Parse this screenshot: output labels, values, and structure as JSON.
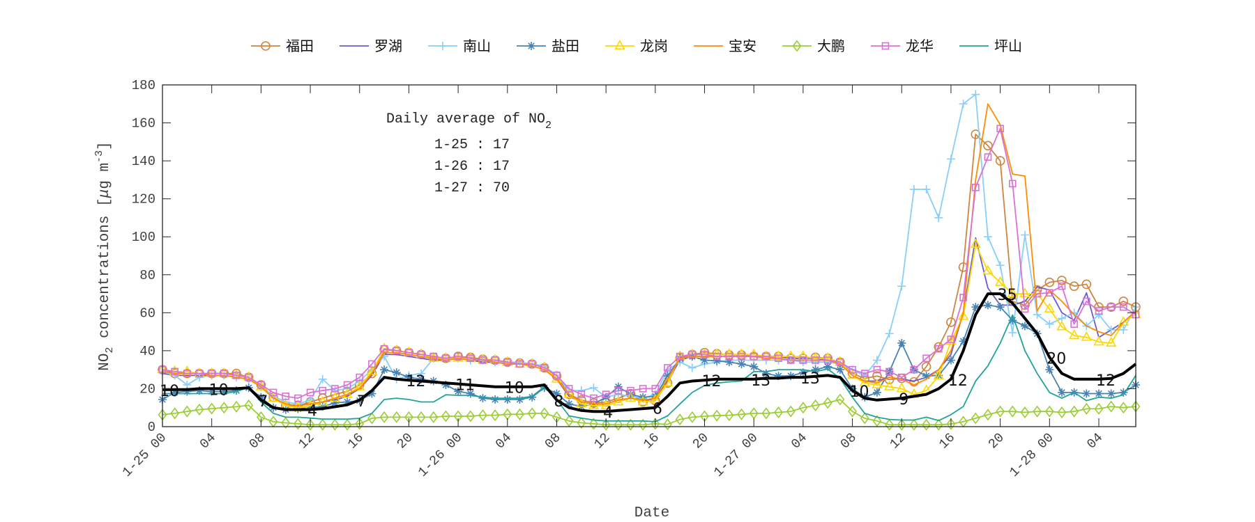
{
  "chart_data": {
    "type": "line",
    "xlabel": "Date",
    "ylabel": {
      "main": "NO",
      "sub": "2",
      "rest": " concentrations [",
      "mu": "μ",
      "unit": "g m",
      "sup": "-3",
      "close": "]"
    },
    "ylim": [
      0,
      180
    ],
    "yticks": [
      0,
      20,
      40,
      60,
      80,
      100,
      120,
      140,
      160,
      180
    ],
    "xlim": [
      "1-25 00",
      "1-28 07"
    ],
    "xticks": [
      {
        "x": "1-25 00",
        "label": "1-25 00"
      },
      {
        "x": "1-25 04",
        "label": "04"
      },
      {
        "x": "1-25 08",
        "label": "08"
      },
      {
        "x": "1-25 12",
        "label": "12"
      },
      {
        "x": "1-25 16",
        "label": "16"
      },
      {
        "x": "1-25 20",
        "label": "20"
      },
      {
        "x": "1-26 00",
        "label": "1-26 00"
      },
      {
        "x": "1-26 04",
        "label": "04"
      },
      {
        "x": "1-26 08",
        "label": "08"
      },
      {
        "x": "1-26 12",
        "label": "12"
      },
      {
        "x": "1-26 16",
        "label": "16"
      },
      {
        "x": "1-26 20",
        "label": "20"
      },
      {
        "x": "1-27 00",
        "label": "1-27 00"
      },
      {
        "x": "1-27 04",
        "label": "04"
      },
      {
        "x": "1-27 08",
        "label": "08"
      },
      {
        "x": "1-27 12",
        "label": "12"
      },
      {
        "x": "1-27 16",
        "label": "16"
      },
      {
        "x": "1-27 20",
        "label": "20"
      },
      {
        "x": "1-28 00",
        "label": "1-28 00"
      },
      {
        "x": "1-28 04",
        "label": "04"
      }
    ],
    "grid": false,
    "legend_placement": "top, outside, horizontal",
    "x": [
      "1-25 00",
      "1-25 01",
      "1-25 02",
      "1-25 03",
      "1-25 04",
      "1-25 05",
      "1-25 06",
      "1-25 07",
      "1-25 08",
      "1-25 09",
      "1-25 10",
      "1-25 11",
      "1-25 12",
      "1-25 13",
      "1-25 14",
      "1-25 15",
      "1-25 16",
      "1-25 17",
      "1-25 18",
      "1-25 19",
      "1-25 20",
      "1-25 21",
      "1-25 22",
      "1-25 23",
      "1-26 00",
      "1-26 01",
      "1-26 02",
      "1-26 03",
      "1-26 04",
      "1-26 05",
      "1-26 06",
      "1-26 07",
      "1-26 08",
      "1-26 09",
      "1-26 10",
      "1-26 11",
      "1-26 12",
      "1-26 13",
      "1-26 14",
      "1-26 15",
      "1-26 16",
      "1-26 17",
      "1-26 18",
      "1-26 19",
      "1-26 20",
      "1-26 21",
      "1-26 22",
      "1-26 23",
      "1-27 00",
      "1-27 01",
      "1-27 02",
      "1-27 03",
      "1-27 04",
      "1-27 05",
      "1-27 06",
      "1-27 07",
      "1-27 08",
      "1-27 09",
      "1-27 10",
      "1-27 11",
      "1-27 12",
      "1-27 13",
      "1-27 14",
      "1-27 15",
      "1-27 16",
      "1-27 17",
      "1-27 18",
      "1-27 19",
      "1-27 20",
      "1-27 21",
      "1-27 22",
      "1-27 23",
      "1-28 00",
      "1-28 01",
      "1-28 02",
      "1-28 03",
      "1-28 04",
      "1-28 05",
      "1-28 06",
      "1-28 07"
    ],
    "series": [
      {
        "name": "福田",
        "color": "#CD853F",
        "marker": "circle",
        "values": [
          30,
          28,
          28,
          28,
          28,
          28,
          28,
          26,
          22,
          15.5,
          11,
          11,
          13,
          15,
          17,
          18.6,
          22,
          28,
          40.5,
          40,
          39,
          38,
          36.5,
          36,
          37,
          36.5,
          35.5,
          35,
          34,
          33.5,
          33,
          31,
          26.7,
          17,
          14,
          12.5,
          13,
          15,
          17.4,
          13,
          13.7,
          23,
          36,
          38,
          39,
          38.4,
          37.8,
          37.8,
          37,
          37,
          37,
          36,
          36,
          36.5,
          36,
          34,
          28,
          25.4,
          26.7,
          24.8,
          25.4,
          23.6,
          31.6,
          42,
          55,
          84,
          154,
          148,
          140,
          66,
          64,
          72,
          76,
          77,
          74,
          75,
          63,
          63,
          66,
          63
        ]
      },
      {
        "name": "罗湖",
        "color": "#6A5ACD",
        "marker": "none",
        "values": [
          28,
          27,
          27,
          27,
          27,
          27,
          26,
          25,
          21,
          15,
          12,
          11,
          12,
          13,
          14,
          16,
          20,
          27,
          38,
          38,
          37,
          36,
          35,
          35,
          36,
          35,
          34,
          34,
          33,
          33,
          32,
          30,
          25,
          16,
          13,
          12,
          12,
          14,
          15,
          14,
          14,
          24,
          35,
          37,
          37,
          37,
          37,
          37,
          37,
          37,
          37,
          36,
          36,
          36,
          35,
          33,
          27,
          24,
          24,
          26,
          25,
          24,
          26,
          30,
          38,
          60,
          99.5,
          73,
          64,
          64,
          66,
          73.6,
          72,
          60,
          56,
          70.5,
          47,
          51,
          55,
          61
        ]
      },
      {
        "name": "南山",
        "color": "#87CEFA",
        "marker": "plus",
        "values": [
          29,
          27,
          22,
          26,
          27,
          27,
          26,
          25,
          21,
          16,
          13,
          12,
          14,
          25,
          19,
          20,
          24,
          30,
          37,
          25,
          27,
          28,
          36,
          36,
          36,
          35,
          35,
          34,
          34,
          34,
          33,
          32,
          27,
          19,
          19,
          20.5,
          15.5,
          17,
          16,
          15,
          17,
          30,
          34,
          31,
          33,
          34,
          35,
          35,
          35,
          35,
          35,
          35,
          34,
          34,
          34,
          33,
          30,
          26.7,
          35,
          49,
          74,
          125,
          125,
          110,
          141,
          170,
          175,
          100,
          85,
          49.5,
          101,
          59,
          54,
          57,
          60,
          53,
          59,
          51,
          51,
          63
        ]
      },
      {
        "name": "盐田",
        "color": "#4682B4",
        "marker": "asterisk",
        "values": [
          14.3,
          18,
          18.5,
          19,
          18.5,
          18.5,
          19,
          20.5,
          15.5,
          10,
          9,
          9.4,
          10,
          10.6,
          12.5,
          13,
          13.7,
          17.4,
          30,
          28.5,
          26,
          25,
          24,
          22,
          18.6,
          17.4,
          15,
          14.3,
          14.3,
          14.3,
          15.5,
          20.5,
          17.4,
          12,
          10.6,
          12,
          15.5,
          21,
          17,
          15.5,
          16,
          26.7,
          36,
          37,
          35,
          34.7,
          34,
          33,
          31.6,
          28,
          26.7,
          26.7,
          28.5,
          30,
          31.6,
          30,
          20,
          15.5,
          18,
          29,
          44,
          30,
          26.7,
          27,
          35,
          45,
          63,
          64,
          63,
          56,
          53,
          49,
          30,
          18,
          18,
          17.4,
          17.4,
          17.4,
          18,
          22
        ]
      },
      {
        "name": "龙岗",
        "color": "#FFD700",
        "marker": "triangle",
        "values": [
          30,
          29,
          29,
          28,
          28,
          28,
          27,
          26,
          21,
          15,
          11,
          10,
          11,
          13,
          15,
          17,
          21,
          29,
          41,
          40,
          39,
          38,
          36,
          36,
          36,
          36,
          35,
          35,
          34,
          33,
          33,
          31,
          25,
          17,
          12,
          11,
          11,
          13,
          15,
          13,
          14,
          23,
          37,
          38,
          38,
          38,
          38,
          38,
          38,
          37,
          37,
          37,
          37,
          36,
          36,
          34,
          27,
          23,
          22,
          21,
          20,
          17,
          19,
          26.7,
          45,
          58,
          96,
          82,
          76,
          70,
          70,
          70,
          62,
          52.6,
          48,
          47,
          44.6,
          44,
          55,
          59
        ]
      },
      {
        "name": "宝安",
        "color": "#FF8C00",
        "marker": "none",
        "values": [
          29,
          28,
          28,
          28,
          27,
          27,
          26,
          25,
          21,
          15,
          12,
          11,
          12,
          13,
          15,
          17,
          20,
          28,
          39,
          39,
          38,
          37,
          36,
          35,
          36,
          35,
          35,
          34,
          33,
          33,
          32,
          30,
          25,
          17,
          13,
          12,
          12,
          14,
          15,
          14,
          15,
          25,
          36,
          37,
          37,
          37,
          37,
          37,
          37,
          36,
          36,
          35,
          35,
          35,
          35,
          33,
          27,
          24,
          23,
          26,
          25,
          22,
          25,
          30,
          40,
          60,
          130,
          170,
          159,
          133,
          132,
          61,
          72,
          66,
          59,
          53,
          50,
          48,
          55,
          61
        ]
      },
      {
        "name": "大鹏",
        "color": "#9ACD32",
        "marker": "diamond",
        "values": [
          6.3,
          7,
          8,
          9,
          9.5,
          10,
          10.5,
          11.2,
          5,
          2.6,
          2,
          1.5,
          1,
          1,
          1,
          1,
          1.5,
          4.4,
          5,
          5,
          5,
          5,
          5,
          5.5,
          5.5,
          5.5,
          6,
          6,
          6.5,
          6.5,
          7,
          7,
          5,
          3,
          2,
          1.5,
          1,
          1,
          1,
          1,
          1.5,
          1.2,
          3.8,
          5,
          5.5,
          5.8,
          6,
          6.5,
          7,
          7,
          7.5,
          8,
          10,
          11.2,
          12.5,
          14.3,
          8,
          4.4,
          3,
          1,
          1,
          1,
          1,
          1,
          1.4,
          2.6,
          4.4,
          6.3,
          8,
          8,
          7.5,
          8,
          8,
          7.5,
          8,
          9.4,
          9.4,
          10.6,
          10,
          10.6
        ]
      },
      {
        "name": "龙华",
        "color": "#DA70D6",
        "marker": "square",
        "values": [
          30,
          29,
          28,
          28,
          28,
          28,
          27,
          26,
          22,
          18,
          16,
          15,
          18,
          19,
          20,
          22,
          26,
          33,
          41,
          40,
          39,
          38,
          37,
          36,
          37,
          36,
          35,
          35,
          34,
          33,
          33,
          31,
          27,
          20,
          17,
          15,
          17,
          19,
          19,
          20,
          20,
          31,
          37,
          38,
          38,
          37,
          37,
          37,
          37,
          37,
          36,
          35,
          35,
          35,
          35,
          34,
          30,
          28,
          30,
          29,
          26,
          30,
          36,
          41,
          46,
          68,
          126,
          142,
          157,
          128,
          62,
          70,
          70.5,
          74,
          54,
          66,
          61,
          63,
          63,
          59
        ]
      },
      {
        "name": "坪山",
        "color": "#20A39A",
        "marker": "none",
        "values": [
          17.4,
          17.4,
          17.4,
          17.4,
          17.4,
          17.4,
          18.5,
          20.7,
          13,
          7,
          5,
          5,
          4.5,
          4,
          4,
          4,
          4.4,
          7,
          14.3,
          15,
          14.3,
          13,
          13,
          16.8,
          16.5,
          16.5,
          15.5,
          15,
          15,
          15,
          16,
          21,
          14.3,
          5.7,
          4.5,
          3.5,
          3,
          3,
          3,
          3,
          2.6,
          5.7,
          12,
          18,
          21.7,
          23,
          23.6,
          24,
          29,
          29,
          30,
          30,
          30,
          29,
          30.4,
          25.4,
          15.5,
          7,
          5,
          3.8,
          3.5,
          3.5,
          5,
          3.2,
          6.3,
          10.6,
          24,
          32,
          44,
          58.8,
          40,
          28,
          18,
          15,
          18,
          13.7,
          15.5,
          15,
          16.8,
          27
        ]
      },
      {
        "color": "#000000",
        "marker": "none",
        "bold": true,
        "values": [
          19.5,
          19.5,
          19.5,
          20,
          20,
          20,
          20,
          20.5,
          14,
          10,
          9,
          9,
          9,
          9.5,
          10.5,
          11.5,
          14,
          19,
          26,
          25,
          24.5,
          24,
          23.5,
          23,
          22.5,
          22,
          21.5,
          21,
          21,
          21,
          21,
          22,
          14,
          10,
          8.5,
          8,
          8,
          8.5,
          9,
          9.5,
          10,
          16,
          23,
          24,
          24.5,
          25,
          25,
          25,
          25,
          25.5,
          25.5,
          26,
          26,
          26.5,
          27,
          26,
          19,
          15,
          14,
          14.5,
          15,
          16,
          17,
          20,
          25,
          40,
          59,
          70,
          70,
          65,
          57,
          49,
          36.5,
          28,
          25,
          25,
          25,
          25.4,
          28,
          33
        ]
      }
    ],
    "line_labels": [
      {
        "x": "1-25 00",
        "text": "10"
      },
      {
        "x": "1-25 04",
        "text": "10"
      },
      {
        "x": "1-25 08",
        "text": "7"
      },
      {
        "x": "1-25 12",
        "text": "4"
      },
      {
        "x": "1-25 16",
        "text": "7"
      },
      {
        "x": "1-25 20",
        "text": "12"
      },
      {
        "x": "1-26 00",
        "text": "11"
      },
      {
        "x": "1-26 04",
        "text": "10"
      },
      {
        "x": "1-26 08",
        "text": "8"
      },
      {
        "x": "1-26 12",
        "text": "4"
      },
      {
        "x": "1-26 16",
        "text": "6"
      },
      {
        "x": "1-26 20",
        "text": "12"
      },
      {
        "x": "1-27 00",
        "text": "13"
      },
      {
        "x": "1-27 04",
        "text": "13"
      },
      {
        "x": "1-27 08",
        "text": "10"
      },
      {
        "x": "1-27 12",
        "text": "9"
      },
      {
        "x": "1-27 16",
        "text": "12"
      },
      {
        "x": "1-27 20",
        "text": "35"
      },
      {
        "x": "1-28 00",
        "text": "20"
      },
      {
        "x": "1-28 04",
        "text": "12"
      }
    ],
    "annotation": {
      "title": "Daily average of NO",
      "title_sub": "2",
      "lines": [
        "1-25 : 17",
        "1-26 : 17",
        "1-27 : 70"
      ]
    }
  }
}
